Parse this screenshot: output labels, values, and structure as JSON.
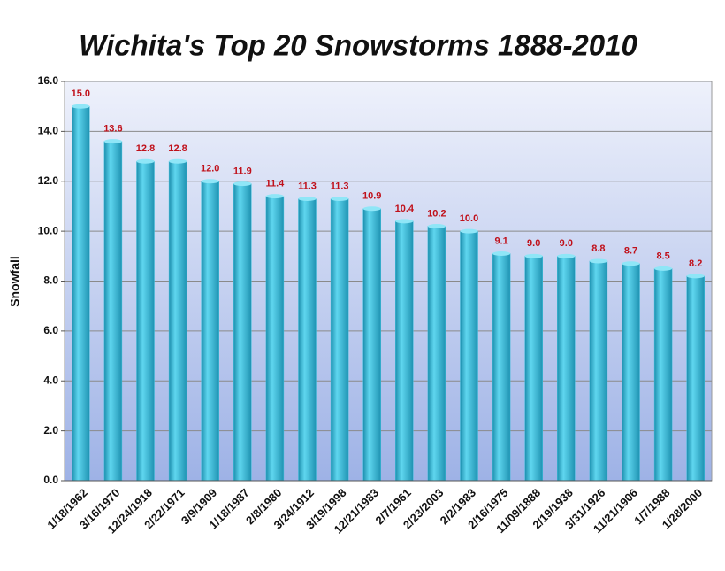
{
  "chart_data": {
    "type": "bar",
    "title": "Wichita's Top 20 Snowstorms 1888-2010",
    "y_label": "Snowfall",
    "categories": [
      "1/18/1962",
      "3/16/1970",
      "12/24/1918",
      "2/22/1971",
      "3/9/1909",
      "1/18/1987",
      "2/8/1980",
      "3/24/1912",
      "3/19/1998",
      "12/21/1983",
      "2/7/1961",
      "2/23/2003",
      "2/2/1983",
      "2/16/1975",
      "11/09/1888",
      "2/19/1938",
      "3/31/1926",
      "11/21/1906",
      "1/7/1988",
      "1/28/2000"
    ],
    "values": [
      15.0,
      13.6,
      12.8,
      12.8,
      12.0,
      11.9,
      11.4,
      11.3,
      11.3,
      10.9,
      10.4,
      10.2,
      10.0,
      9.1,
      9.0,
      9.0,
      8.8,
      8.7,
      8.5,
      8.2
    ],
    "value_labels": [
      "15.0",
      "13.6",
      "12.8",
      "12.8",
      "12.0",
      "11.9",
      "11.4",
      "11.3",
      "11.3",
      "10.9",
      "10.4",
      "10.2",
      "10.0",
      "9.1",
      "9.0",
      "9.0",
      "8.8",
      "8.7",
      "8.5",
      "8.2"
    ],
    "color": "#3fbfdc",
    "ylim": [
      0,
      16
    ],
    "yticks": [
      {
        "value": 0,
        "label": "0.0"
      },
      {
        "value": 2,
        "label": "2.0"
      },
      {
        "value": 4,
        "label": "4.0"
      },
      {
        "value": 6,
        "label": "6.0"
      },
      {
        "value": 8,
        "label": "8.0"
      },
      {
        "value": 10,
        "label": "10.0"
      },
      {
        "value": 12,
        "label": "12.0"
      },
      {
        "value": 14,
        "label": "14.0"
      },
      {
        "value": 16,
        "label": "16.0"
      }
    ],
    "grid": true
  }
}
